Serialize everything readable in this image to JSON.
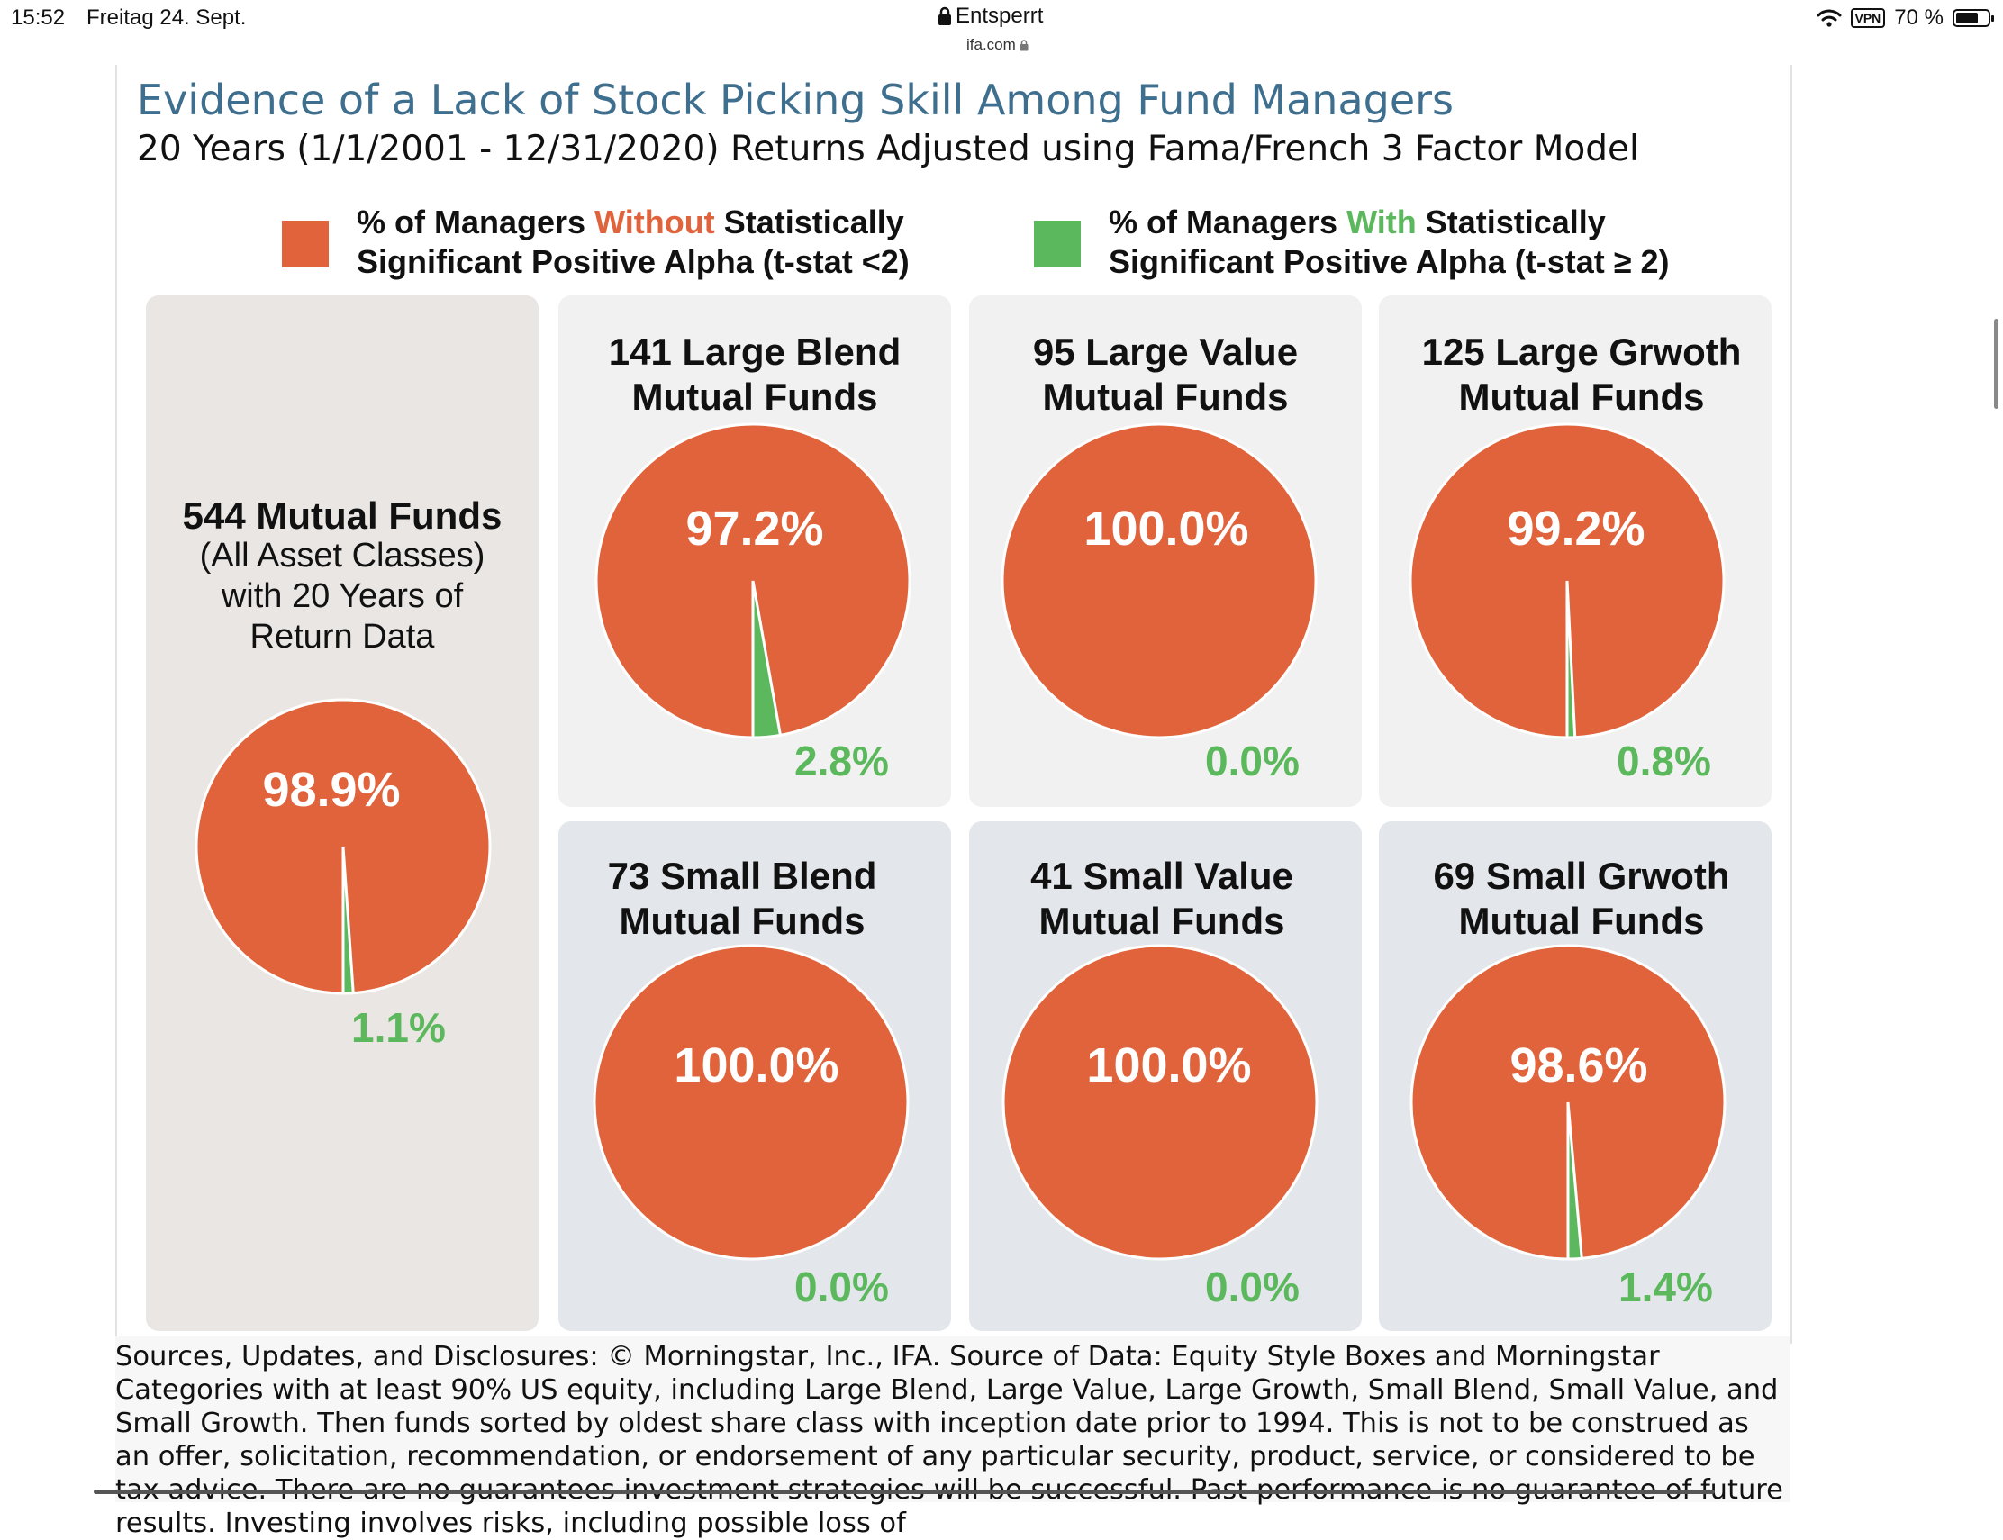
{
  "status_bar": {
    "time": "15:52",
    "date": "Freitag 24. Sept.",
    "lock_title": "Entsperrt",
    "url": "ifa.com",
    "vpn": "VPN",
    "battery": "70 %"
  },
  "header": {
    "title": "Evidence of a Lack of Stock Picking Skill Among Fund Managers",
    "subtitle": "20 Years (1/1/2001 - 12/31/2020) Returns Adjusted using Fama/French 3 Factor Model"
  },
  "legend": {
    "without": {
      "pre": "% of Managers ",
      "key": "Without",
      "post": " Statistically",
      "line2": "Significant Positive Alpha  (t-stat <2)",
      "color": "#e0633b"
    },
    "with": {
      "pre": "% of Managers ",
      "key": "With",
      "post": " Statistically",
      "line2": "Significant Positive Alpha (t-stat ≥ 2)",
      "color": "#5cb85c"
    }
  },
  "summary": {
    "title": "544 Mutual Funds",
    "line1": "(All Asset Classes)",
    "line2": "with 20 Years of",
    "line3": "Return Data"
  },
  "chart_data": [
    {
      "type": "pie",
      "title_line1": "544 Mutual Funds",
      "title_line2": "(All Asset Classes)",
      "categories": [
        "Without",
        "With"
      ],
      "values": [
        98.9,
        1.1
      ],
      "labels": [
        "98.9%",
        "1.1%"
      ]
    },
    {
      "type": "pie",
      "title_line1": "141 Large Blend",
      "title_line2": "Mutual Funds",
      "categories": [
        "Without",
        "With"
      ],
      "values": [
        97.2,
        2.8
      ],
      "labels": [
        "97.2%",
        "2.8%"
      ]
    },
    {
      "type": "pie",
      "title_line1": "95 Large Value",
      "title_line2": "Mutual Funds",
      "categories": [
        "Without",
        "With"
      ],
      "values": [
        100.0,
        0.0
      ],
      "labels": [
        "100.0%",
        "0.0%"
      ]
    },
    {
      "type": "pie",
      "title_line1": "125 Large Grwoth",
      "title_line2": "Mutual Funds",
      "categories": [
        "Without",
        "With"
      ],
      "values": [
        99.2,
        0.8
      ],
      "labels": [
        "99.2%",
        "0.8%"
      ]
    },
    {
      "type": "pie",
      "title_line1": "73 Small Blend",
      "title_line2": "Mutual Funds",
      "categories": [
        "Without",
        "With"
      ],
      "values": [
        100.0,
        0.0
      ],
      "labels": [
        "100.0%",
        "0.0%"
      ]
    },
    {
      "type": "pie",
      "title_line1": "41 Small Value",
      "title_line2": "Mutual Funds",
      "categories": [
        "Without",
        "With"
      ],
      "values": [
        100.0,
        0.0
      ],
      "labels": [
        "100.0%",
        "0.0%"
      ]
    },
    {
      "type": "pie",
      "title_line1": "69 Small Grwoth",
      "title_line2": "Mutual Funds",
      "categories": [
        "Without",
        "With"
      ],
      "values": [
        98.6,
        1.4
      ],
      "labels": [
        "98.6%",
        "1.4%"
      ]
    }
  ],
  "colors": {
    "without": "#e0633b",
    "with": "#5cb85c"
  },
  "disclosure": {
    "text": "Sources, Updates, and Disclosures: © Morningstar, Inc., IFA. Source of Data: Equity Style Boxes and Morningstar Categories with at least 90% US equity, including Large Blend, Large Value, Large Growth, Small Blend, Small Value, and Small Growth. Then funds sorted by oldest share class with inception date prior to 1994. This is not to be construed as an offer, solicitation, recommendation, or endorsement of any particular security, product, service, or considered to be tax advice. There are no guarantees investment strategies will be successful. Past performance is no guarantee of future results. Investing involves risks, including possible loss of"
  }
}
